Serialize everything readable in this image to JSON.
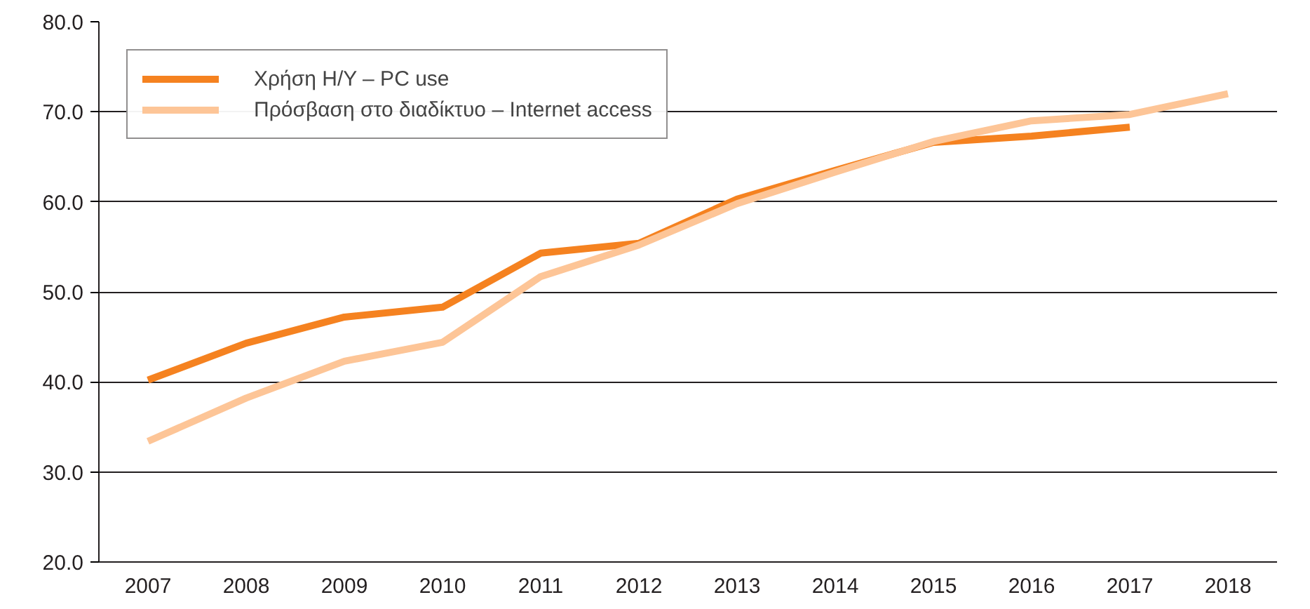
{
  "chart_data": {
    "type": "line",
    "categories": [
      "2007",
      "2008",
      "2009",
      "2010",
      "2011",
      "2012",
      "2013",
      "2014",
      "2015",
      "2016",
      "2017",
      "2018"
    ],
    "series": [
      {
        "name": "Χρήση Η/Υ – PC use",
        "color": "#f58220",
        "values": [
          40.2,
          44.3,
          47.2,
          48.3,
          54.3,
          55.4,
          60.3,
          63.5,
          66.6,
          67.3,
          68.3,
          null
        ]
      },
      {
        "name": "Πρόσβαση στο διαδίκτυο – Internet access",
        "color": "#fdc597",
        "values": [
          33.4,
          38.2,
          42.3,
          44.4,
          51.7,
          55.2,
          59.8,
          63.3,
          66.7,
          69.0,
          69.7,
          72.0
        ]
      }
    ],
    "ylim": [
      20,
      80
    ],
    "yticks": [
      {
        "value": 20,
        "label": "20.0"
      },
      {
        "value": 30,
        "label": "30.0"
      },
      {
        "value": 40,
        "label": "40.0"
      },
      {
        "value": 50,
        "label": "50.0"
      },
      {
        "value": 60,
        "label": "60.0"
      },
      {
        "value": 70,
        "label": "70.0"
      },
      {
        "value": 80,
        "label": "80.0"
      }
    ],
    "grid": "y",
    "legend": "top left",
    "marker": "none",
    "line_style": "solid"
  }
}
